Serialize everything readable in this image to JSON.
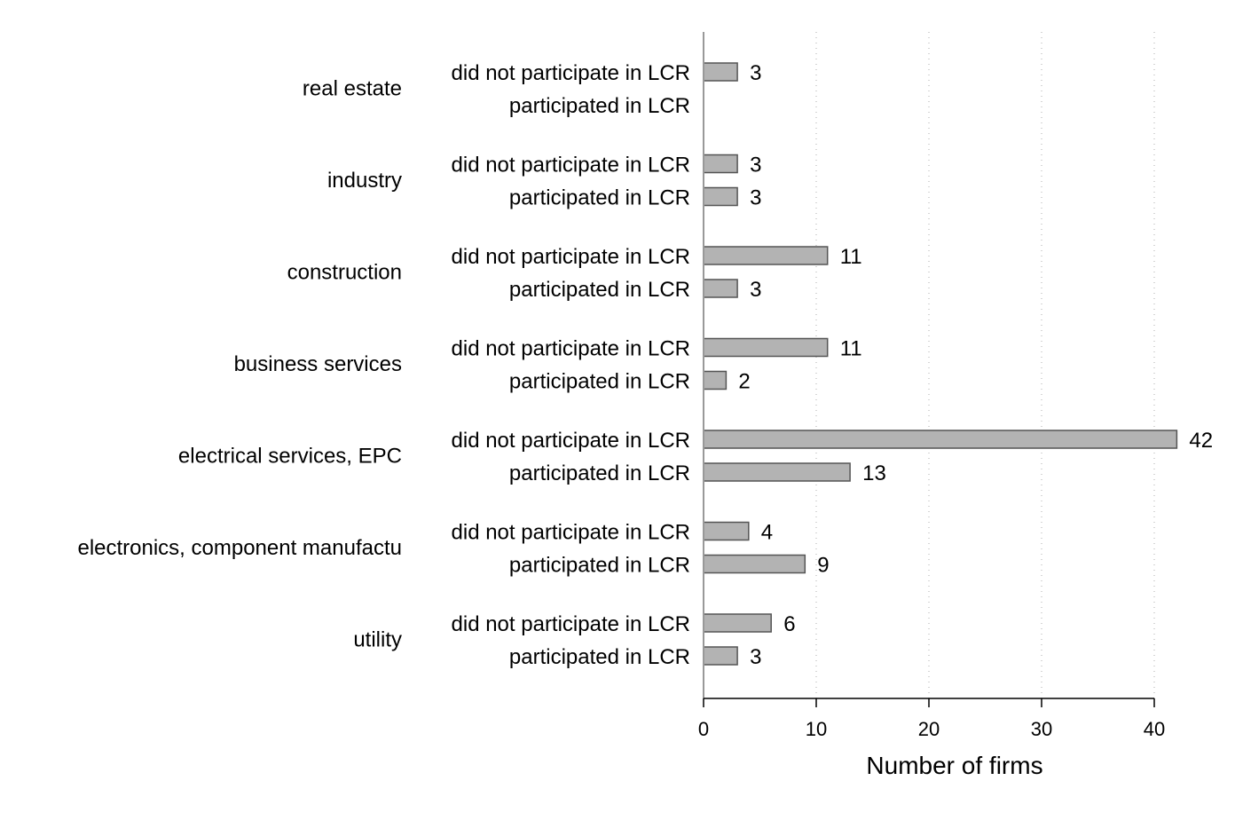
{
  "chart_data": {
    "type": "bar",
    "orientation": "horizontal",
    "xlabel": "Number of firms",
    "xlim": [
      0,
      42
    ],
    "xticks": [
      0,
      10,
      20,
      30,
      40
    ],
    "grid": "vertical dotted",
    "bar_color": "#b3b3b3",
    "bar_edge_color": "#555555",
    "sub_categories": [
      "did not participate in LCR",
      "participated in LCR"
    ],
    "groups": [
      {
        "name": "real estate",
        "values": [
          3,
          null
        ]
      },
      {
        "name": "industry",
        "values": [
          3,
          3
        ]
      },
      {
        "name": "construction",
        "values": [
          11,
          3
        ]
      },
      {
        "name": "business services",
        "values": [
          11,
          2
        ]
      },
      {
        "name": "electrical services, EPC",
        "values": [
          42,
          13
        ]
      },
      {
        "name": "electronics, component manufactu",
        "values": [
          4,
          9
        ]
      },
      {
        "name": "utility",
        "values": [
          6,
          3
        ]
      }
    ]
  }
}
